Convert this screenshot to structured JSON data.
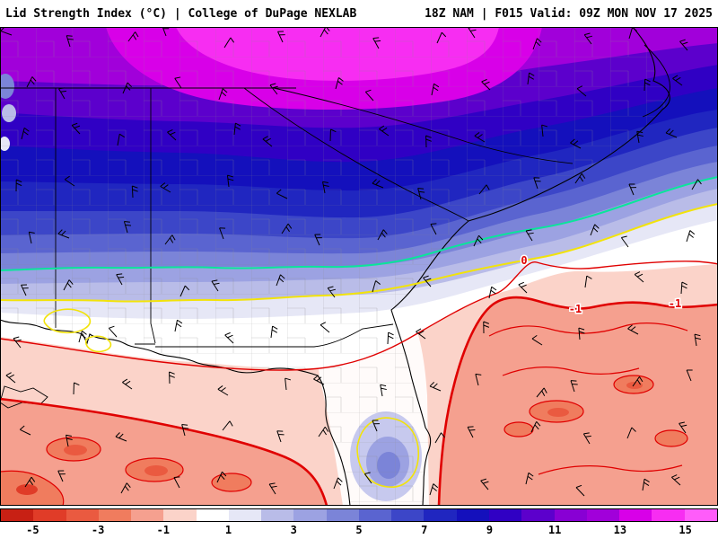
{
  "header": {
    "left_title": "Lid Strength Index (°C) | College of DuPage NEXLAB",
    "right_title": "18Z NAM | F015 Valid: 09Z MON NOV 17 2025"
  },
  "map": {
    "contour_labels": [
      {
        "text": "0"
      },
      {
        "text": "-1"
      },
      {
        "text": "-1"
      }
    ]
  },
  "colorbar": {
    "min": -6,
    "max": 16,
    "ticks": [
      "-5",
      "-3",
      "-1",
      "1",
      "3",
      "5",
      "7",
      "9",
      "11",
      "13",
      "15"
    ],
    "colors": [
      "#c82014",
      "#e03c28",
      "#ea5a40",
      "#f07c5e",
      "#f5a08f",
      "#fbd3c9",
      "#ffffff",
      "#e6e7f6",
      "#b9bce8",
      "#9ca2e2",
      "#7b84d8",
      "#5a64d0",
      "#3c46c8",
      "#2026c0",
      "#1410bc",
      "#3000c4",
      "#5c00cc",
      "#8800d4",
      "#a100da",
      "#d800e8",
      "#f72df2",
      "#ff5cfa"
    ]
  },
  "chart_data": {
    "type": "heatmap",
    "title": "Lid Strength Index (°C)",
    "source": "College of DuPage NEXLAB",
    "model_run": "18Z NAM",
    "forecast_hour": "F015",
    "valid_time": "09Z MON NOV 17 2025",
    "units": "°C",
    "region": "Southeastern U.S. (AL, GA, SC, NC, FL) with Gulf of Mexico and western Atlantic",
    "colorbar": {
      "range": [
        -6,
        16
      ],
      "tick_values": [
        -5,
        -3,
        -1,
        1,
        3,
        5,
        7,
        9,
        11,
        13,
        15
      ]
    },
    "field_description": [
      {
        "area": "north / northwest (TN-NC-upstate GA/SC)",
        "lid_strength_c": "12 to 15 (magenta/purple maximum)"
      },
      {
        "area": "central Georgia and South Carolina",
        "lid_strength_c": "4 to 11 (blue-purple gradient)"
      },
      {
        "area": "south Georgia / Florida panhandle / coastal SC",
        "lid_strength_c": "0 to 3 (white to pale lavender band)"
      },
      {
        "area": "Gulf of Mexico (southwest corner)",
        "lid_strength_c": "-1 to -4 (pink/red with closed red contours)"
      },
      {
        "area": "Atlantic east of Florida (southeast)",
        "lid_strength_c": "-1 to -4 (pink/red; 0 and -1 contours labeled)"
      },
      {
        "area": "central Florida peninsula",
        "lid_strength_c": "1 to 5 (local lavender/blue maximum with yellow contour)"
      }
    ],
    "overlays": [
      "wind barbs",
      "state and county boundaries",
      "contour lines: green ~3C, yellow ~1C, red 0C and -1C"
    ]
  }
}
